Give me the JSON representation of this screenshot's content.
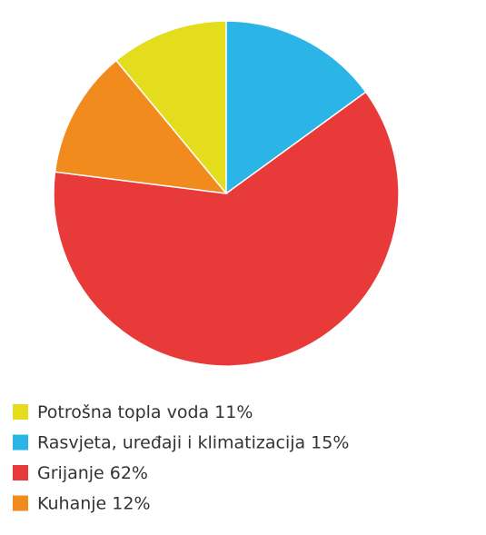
{
  "chart_data": {
    "type": "pie",
    "categories": [
      "Potrošna topla voda",
      "Rasvjeta, uređaji i klimatizacija",
      "Grijanje",
      "Kuhanje"
    ],
    "values": [
      11,
      15,
      62,
      12
    ],
    "value_labels": [
      "11%",
      "15%",
      "62%",
      "12%"
    ],
    "colors": [
      "#e3dd1e",
      "#2bb4e6",
      "#e93a3a",
      "#f28b1e"
    ]
  }
}
